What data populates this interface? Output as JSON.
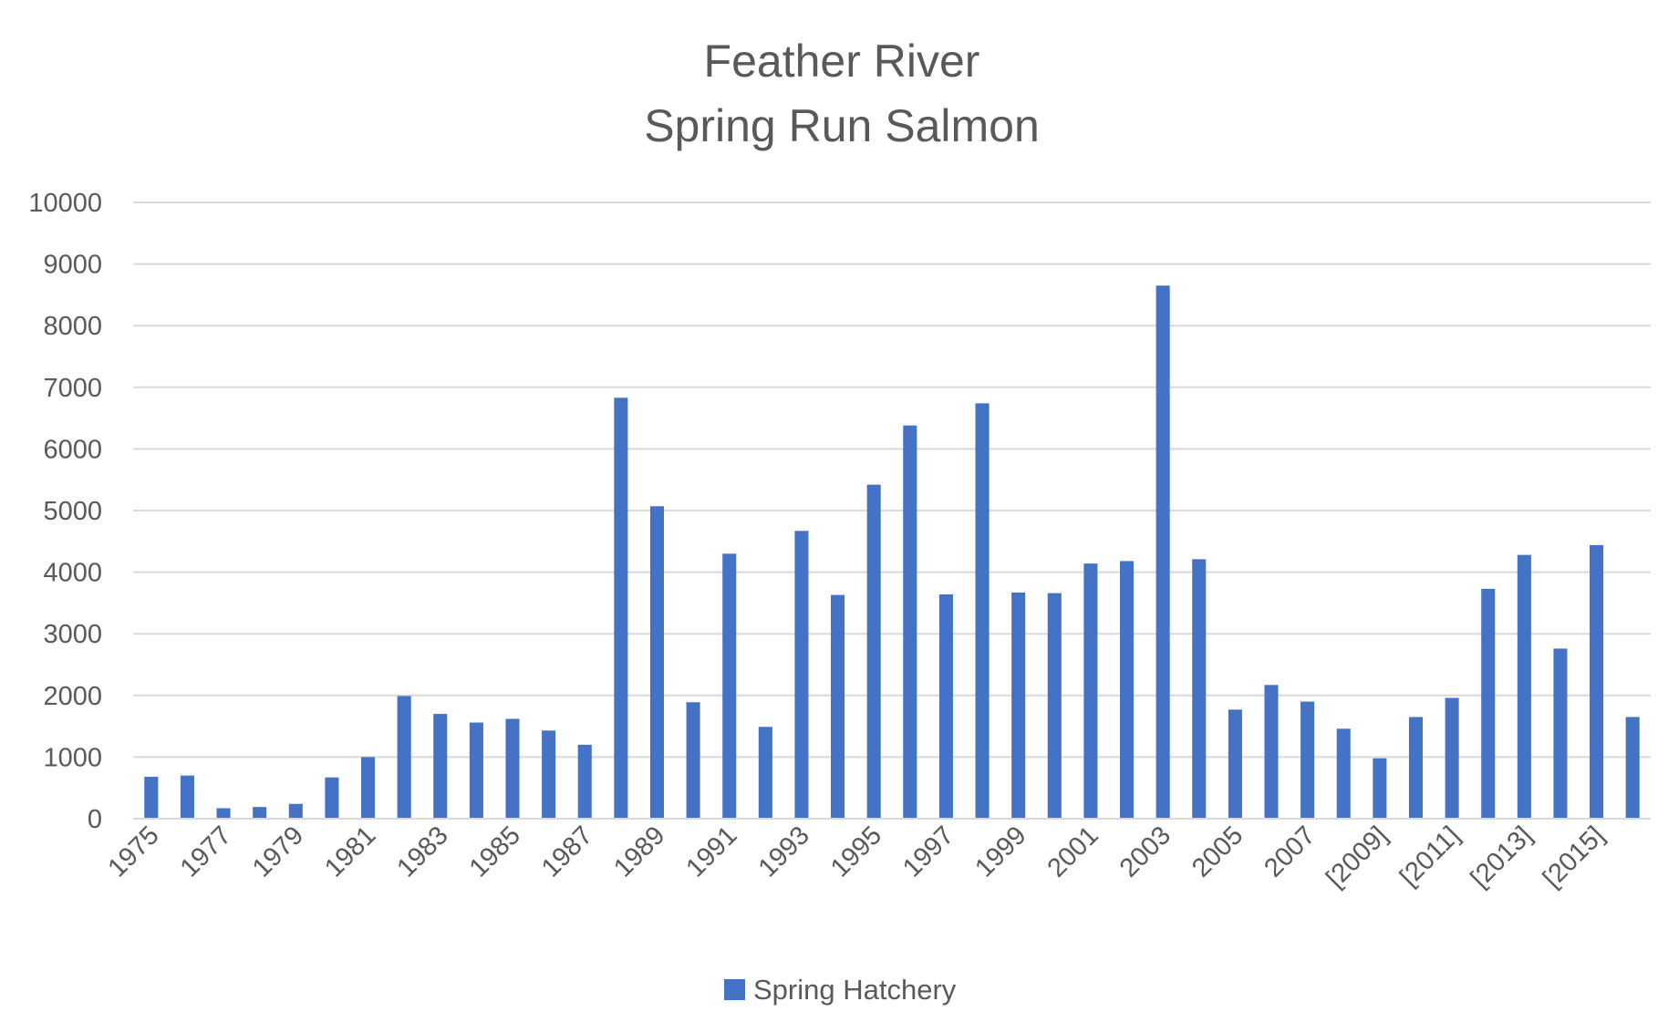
{
  "chart_data": {
    "type": "bar",
    "title": [
      "Feather River",
      "Spring Run Salmon"
    ],
    "xlabel": "",
    "ylabel": "",
    "ylim": [
      0,
      10000
    ],
    "yticks": [
      0,
      1000,
      2000,
      3000,
      4000,
      5000,
      6000,
      7000,
      8000,
      9000,
      10000
    ],
    "grid": true,
    "legend_position": "bottom",
    "categories": [
      "1975",
      "1976",
      "1977",
      "1978",
      "1979",
      "1980",
      "1981",
      "1982",
      "1983",
      "1984",
      "1985",
      "1986",
      "1987",
      "1988",
      "1989",
      "1990",
      "1991",
      "1992",
      "1993",
      "1994",
      "1995",
      "1996",
      "1997",
      "1998",
      "1999",
      "2000",
      "2001",
      "2002",
      "2003",
      "2004",
      "2005",
      "2006",
      "2007",
      "2008",
      "[2009]",
      "2010",
      "[2011]",
      "2012",
      "[2013]",
      "2014",
      "[2015]",
      "2016"
    ],
    "x_tick_labels": [
      "1975",
      "",
      "1977",
      "",
      "1979",
      "",
      "1981",
      "",
      "1983",
      "",
      "1985",
      "",
      "1987",
      "",
      "1989",
      "",
      "1991",
      "",
      "1993",
      "",
      "1995",
      "",
      "1997",
      "",
      "1999",
      "",
      "2001",
      "",
      "2003",
      "",
      "2005",
      "",
      "2007",
      "",
      "[2009]",
      "",
      "[2011]",
      "",
      "[2013]",
      "",
      "[2015]",
      ""
    ],
    "series": [
      {
        "name": "Spring Hatchery",
        "color": "#4472C4",
        "values": [
          680,
          700,
          170,
          190,
          240,
          670,
          1000,
          1990,
          1700,
          1560,
          1620,
          1430,
          1200,
          6830,
          5070,
          1890,
          4300,
          1490,
          4670,
          3630,
          5420,
          6380,
          3640,
          6740,
          3670,
          3660,
          4140,
          4180,
          8650,
          4210,
          1770,
          2170,
          1900,
          1460,
          980,
          1650,
          1960,
          3730,
          4280,
          2760,
          4440,
          1650
        ]
      }
    ]
  }
}
